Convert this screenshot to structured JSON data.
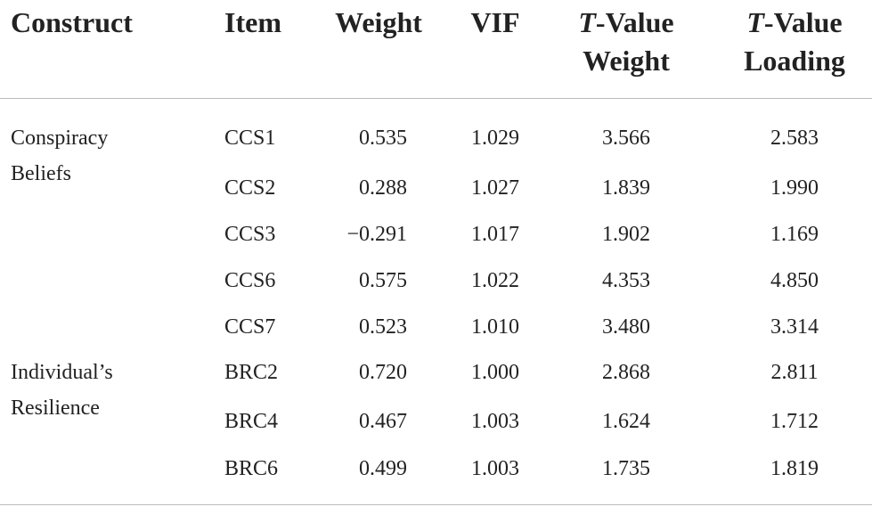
{
  "table": {
    "columns": [
      [
        "Construct"
      ],
      [
        "Item"
      ],
      [
        "Weight"
      ],
      [
        "VIF"
      ],
      [
        "T-Value",
        "Weight"
      ],
      [
        "T-Value",
        "Loading"
      ]
    ],
    "groups": [
      {
        "construct": "Conspiracy Beliefs",
        "rows": [
          [
            "CCS1",
            "0.535",
            "1.029",
            "3.566",
            "2.583"
          ],
          [
            "CCS2",
            "0.288",
            "1.027",
            "1.839",
            "1.990"
          ],
          [
            "CCS3",
            "−0.291",
            "1.017",
            "1.902",
            "1.169"
          ],
          [
            "CCS6",
            "0.575",
            "1.022",
            "4.353",
            "4.850"
          ],
          [
            "CCS7",
            "0.523",
            "1.010",
            "3.480",
            "3.314"
          ]
        ]
      },
      {
        "construct": "Individual’s Resilience",
        "rows": [
          [
            "BRC2",
            "0.720",
            "1.000",
            "2.868",
            "2.811"
          ],
          [
            "BRC4",
            "0.467",
            "1.003",
            "1.624",
            "1.712"
          ],
          [
            "BRC6",
            "0.499",
            "1.003",
            "1.735",
            "1.819"
          ]
        ]
      }
    ]
  }
}
